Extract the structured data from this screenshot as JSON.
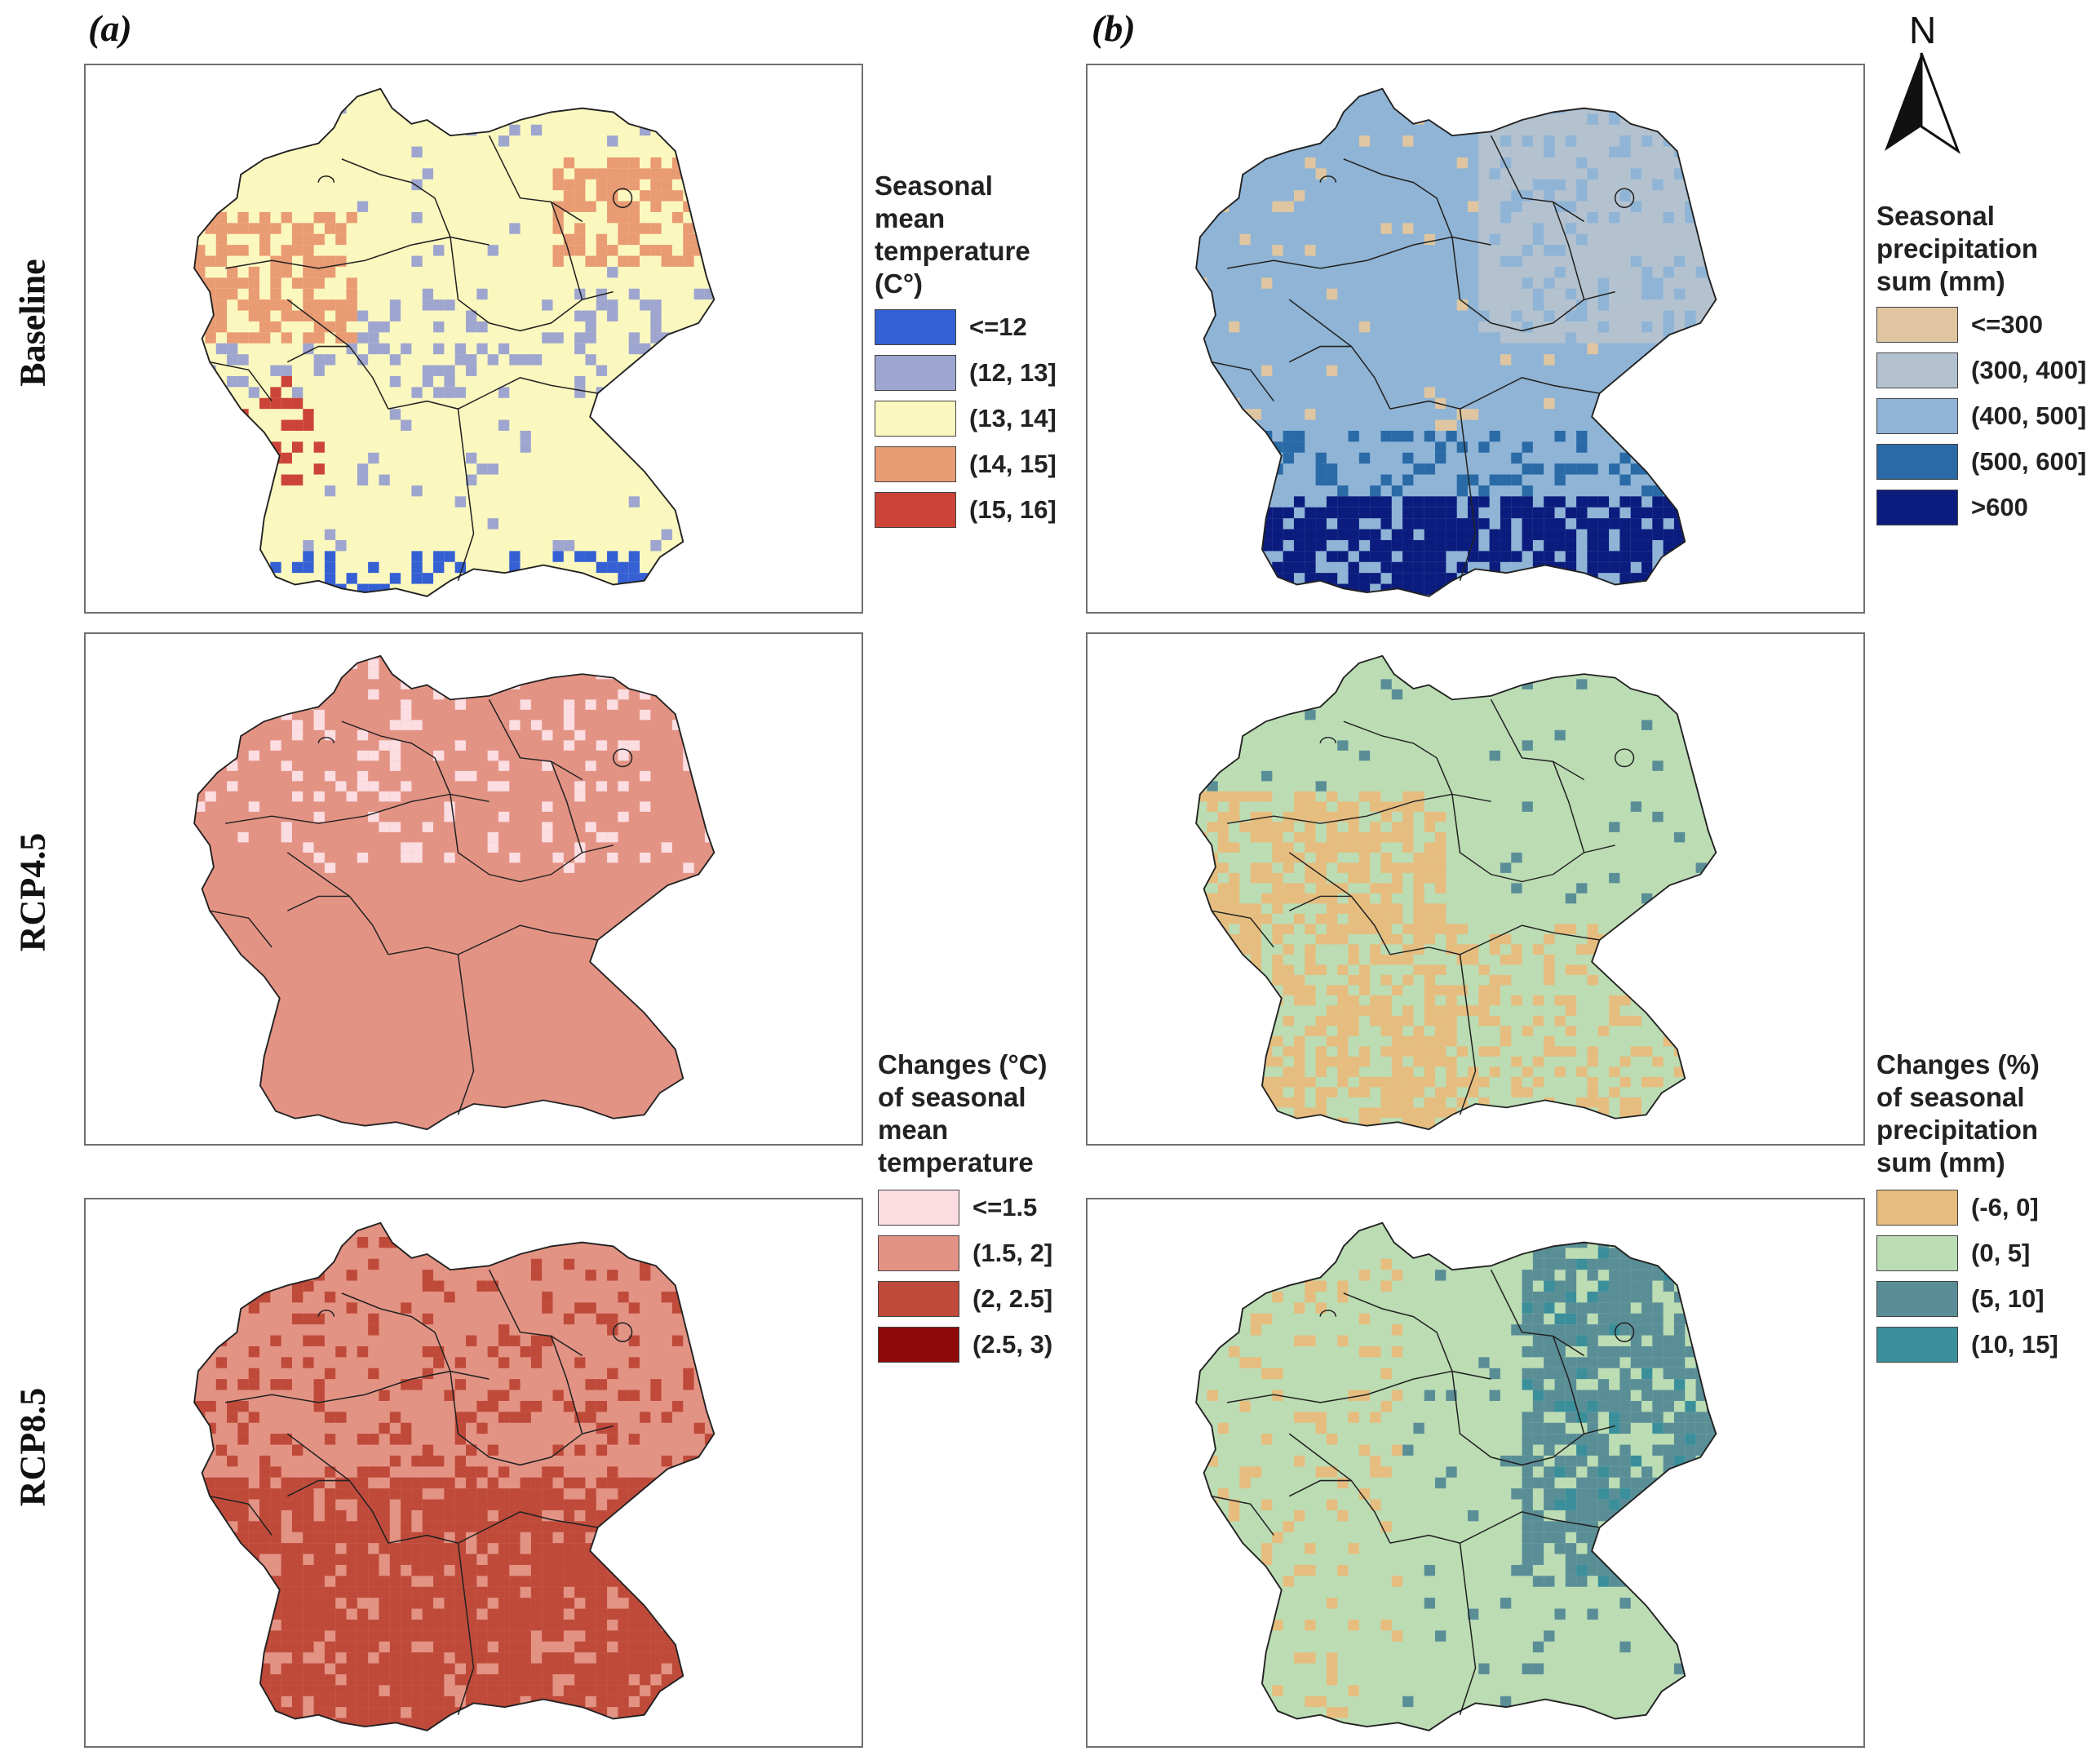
{
  "panels": {
    "a": "(a)",
    "b": "(b)"
  },
  "rows": [
    "Baseline",
    "RCP4.5",
    "RCP8.5"
  ],
  "north": "N",
  "legends": {
    "baseline_temp": {
      "title": [
        "Seasonal",
        "mean",
        "temperature",
        "(C°)"
      ],
      "items": [
        {
          "label": "<=12",
          "color": "#3560d4"
        },
        {
          "label": "(12, 13]",
          "color": "#9ea6cf"
        },
        {
          "label": "(13, 14]",
          "color": "#fbf8bf"
        },
        {
          "label": "(14, 15]",
          "color": "#e99b73"
        },
        {
          "label": "(15, 16]",
          "color": "#cc4438"
        }
      ]
    },
    "baseline_prec": {
      "title": [
        "Seasonal",
        "precipitation",
        "sum (mm)"
      ],
      "items": [
        {
          "label": "<=300",
          "color": "#dfc6a0"
        },
        {
          "label": "(300, 400]",
          "color": "#b4c2cf"
        },
        {
          "label": "(400, 500]",
          "color": "#8fb4d6"
        },
        {
          "label": "(500, 600]",
          "color": "#2a6ba7"
        },
        {
          "label": ">600",
          "color": "#0b1c7e"
        }
      ]
    },
    "change_temp": {
      "title": [
        "Changes (°C)",
        "of seasonal",
        "mean",
        "temperature"
      ],
      "items": [
        {
          "label": "<=1.5",
          "color": "#fbdde2"
        },
        {
          "label": "(1.5, 2]",
          "color": "#e39384"
        },
        {
          "label": "(2, 2.5]",
          "color": "#bf4a3a"
        },
        {
          "label": "(2.5, 3)",
          "color": "#8e0a0a"
        }
      ]
    },
    "change_prec": {
      "title": [
        "Changes (%)",
        "of seasonal",
        "precipitation",
        "sum (mm)"
      ],
      "items": [
        {
          "label": "(-6, 0]",
          "color": "#e6bd7e"
        },
        {
          "label": "(0, 5]",
          "color": "#bcdcb4"
        },
        {
          "label": "(5, 10]",
          "color": "#5a8e97"
        },
        {
          "label": "(10, 15]",
          "color": "#3a8f9b"
        }
      ]
    }
  },
  "maps": [
    {
      "id": "temp-baseline",
      "base": "#fbf8bf",
      "patches": [
        "#e99b73",
        "#9ea6cf",
        "#3560d4",
        "#cc4438"
      ]
    },
    {
      "id": "prec-baseline",
      "base": "#8fb4d6",
      "patches": [
        "#b4c2cf",
        "#2a6ba7",
        "#0b1c7e",
        "#dfc6a0"
      ]
    },
    {
      "id": "temp-rcp45",
      "base": "#e39384",
      "patches": [
        "#fbdde2"
      ]
    },
    {
      "id": "prec-rcp45",
      "base": "#bcdcb4",
      "patches": [
        "#e6bd7e",
        "#5a8e97"
      ]
    },
    {
      "id": "temp-rcp85",
      "base": "#e39384",
      "patches": [
        "#bf4a3a"
      ]
    },
    {
      "id": "prec-rcp85",
      "base": "#bcdcb4",
      "patches": [
        "#5a8e97",
        "#e6bd7e",
        "#3a8f9b"
      ]
    }
  ]
}
